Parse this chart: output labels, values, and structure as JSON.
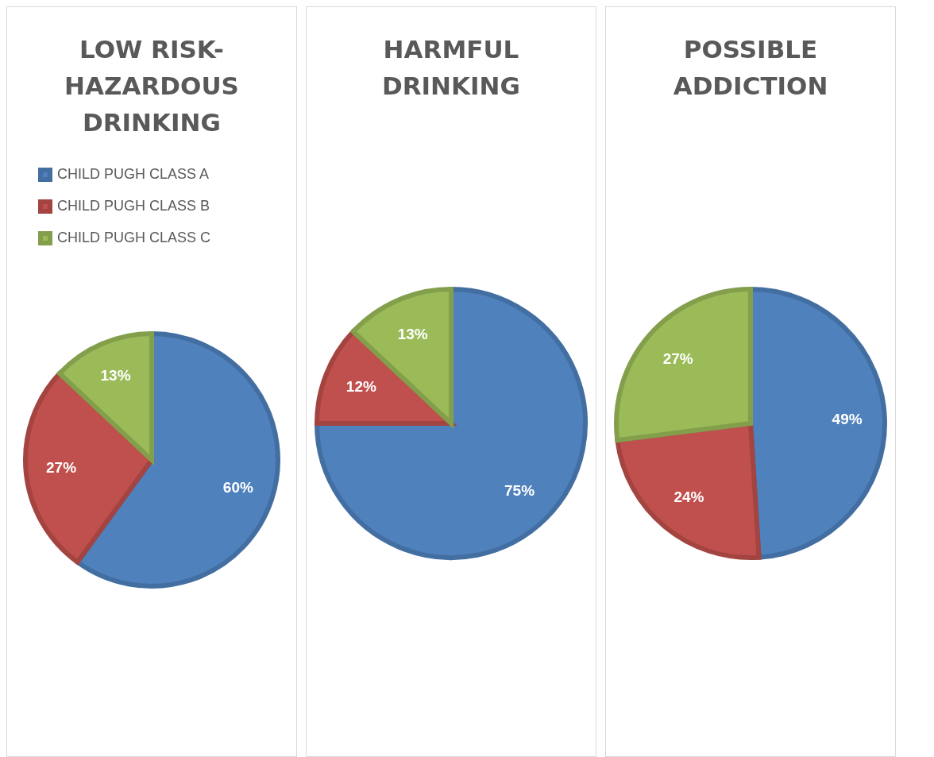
{
  "chart_data": [
    {
      "type": "pie",
      "title": "LOW RISK-HAZARDOUS DRINKING",
      "categories": [
        "CHILD PUGH CLASS A",
        "CHILD PUGH CLASS B",
        "CHILD PUGH CLASS C"
      ],
      "values": [
        60,
        27,
        13
      ],
      "value_labels": [
        "60%",
        "27%",
        "13%"
      ],
      "colors": [
        "#4f81bd",
        "#c0504d",
        "#9bbb59"
      ],
      "legend": "top"
    },
    {
      "type": "pie",
      "title": "HARMFUL DRINKING",
      "categories": [
        null,
        null,
        null
      ],
      "values": [
        75,
        12,
        13
      ],
      "value_labels": [
        "75%",
        "12%",
        "13%"
      ],
      "colors": [
        "#4f81bd",
        "#c0504d",
        "#9bbb59"
      ]
    },
    {
      "type": "pie",
      "title": "POSSIBLE ADDICTION",
      "categories": [
        null,
        null,
        null
      ],
      "values": [
        49,
        24,
        27
      ],
      "value_labels": [
        "49%",
        "24%",
        "27%"
      ],
      "colors": [
        "#4f81bd",
        "#c0504d",
        "#9bbb59"
      ]
    }
  ]
}
